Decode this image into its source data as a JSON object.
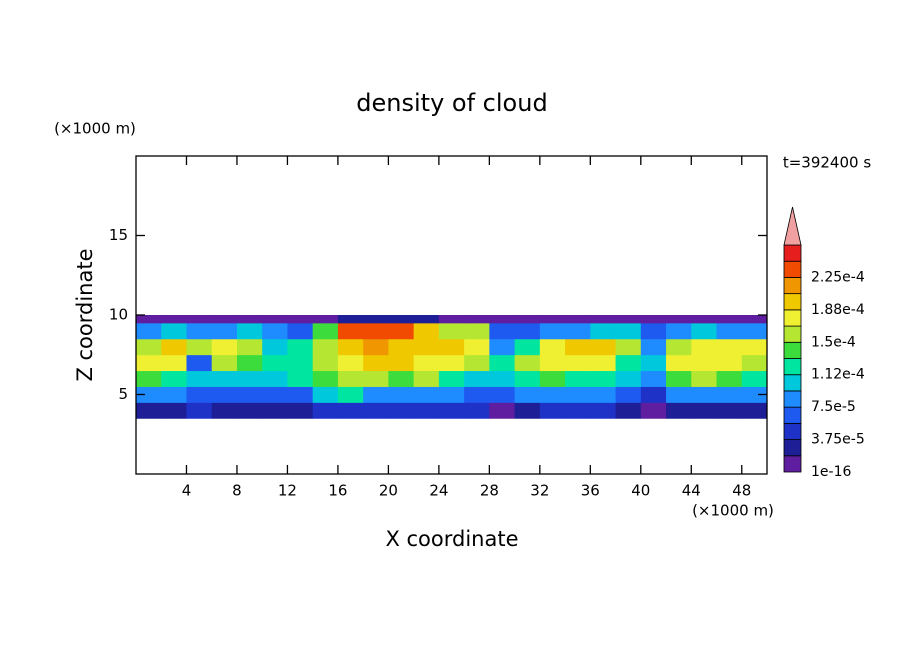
{
  "chart_data": {
    "type": "contour",
    "title": "density of cloud",
    "annotation": "t=392400 s",
    "xlabel": "X coordinate",
    "ylabel": "Z coordinate",
    "xunit": "(×1000 m)",
    "yunit": "(×1000 m)",
    "xlim": [
      0,
      50
    ],
    "ylim": [
      0,
      20
    ],
    "xticks": [
      4,
      8,
      12,
      16,
      20,
      24,
      28,
      32,
      36,
      40,
      44,
      48
    ],
    "yticks": [
      5,
      10,
      15
    ],
    "xbins": [
      0,
      2,
      4,
      6,
      8,
      10,
      12,
      14,
      16,
      18,
      20,
      22,
      24,
      26,
      28,
      30,
      32,
      34,
      36,
      38,
      40,
      42,
      44,
      46,
      48,
      50
    ],
    "zbins": [
      3.5,
      4.5,
      5.5,
      6.5,
      7.5,
      8.5,
      9.5,
      10
    ],
    "values": [
      [
        3e-05,
        3e-05,
        4e-05,
        3e-05,
        3e-05,
        3e-05,
        3e-05,
        4e-05,
        5e-05,
        5e-05,
        4e-05,
        4e-05,
        4e-05,
        4e-05,
        1e-05,
        2e-05,
        4e-05,
        5e-05,
        4e-05,
        2e-05,
        1e-05,
        2e-05,
        3e-05,
        3e-05,
        3e-05
      ],
      [
        8e-05,
        8e-05,
        7e-05,
        7e-05,
        6e-05,
        6e-05,
        7e-05,
        0.00011,
        0.00012,
        9e-05,
        8e-05,
        8e-05,
        9e-05,
        6e-05,
        6e-05,
        8e-05,
        9e-05,
        8e-05,
        9e-05,
        6e-05,
        5e-05,
        9e-05,
        9e-05,
        8e-05,
        8e-05
      ],
      [
        0.00014,
        0.00013,
        0.0001,
        0.00011,
        0.0001,
        0.00011,
        0.00012,
        0.00014,
        0.00016,
        0.00015,
        0.00014,
        0.00015,
        0.00013,
        0.0001,
        0.00011,
        0.00013,
        0.00014,
        0.00013,
        0.00012,
        0.0001,
        9e-05,
        0.00014,
        0.00015,
        0.00014,
        0.00013
      ],
      [
        0.00018,
        0.00017,
        7e-05,
        0.00015,
        0.00014,
        0.00012,
        0.00013,
        0.00016,
        0.00018,
        0.00019,
        0.00019,
        0.00018,
        0.00017,
        0.00015,
        0.00013,
        0.00015,
        0.00017,
        0.00018,
        0.00017,
        0.00013,
        0.00011,
        0.00017,
        0.00018,
        0.00017,
        0.00016
      ],
      [
        0.00016,
        0.0002,
        0.00016,
        0.00017,
        0.00016,
        0.00011,
        0.00012,
        0.00016,
        0.0002,
        0.00021,
        0.0002,
        0.00019,
        0.0002,
        0.00018,
        9e-05,
        0.00013,
        0.00017,
        0.00019,
        0.00019,
        0.00016,
        8e-05,
        0.00015,
        0.00018,
        0.00018,
        0.00017
      ],
      [
        9e-05,
        0.00011,
        9e-05,
        8e-05,
        0.0001,
        8e-05,
        7e-05,
        0.00014,
        0.00023,
        0.00024,
        0.00023,
        0.0002,
        0.00016,
        0.00015,
        6e-05,
        7e-05,
        8e-05,
        9e-05,
        0.0001,
        0.00011,
        6e-05,
        8e-05,
        0.0001,
        9e-05,
        8e-05
      ],
      [
        1e-05,
        1e-05,
        1e-05,
        1e-05,
        1e-05,
        1e-05,
        1e-05,
        1e-05,
        2e-05,
        2e-05,
        2e-05,
        2e-05,
        1e-05,
        1e-05,
        1e-05,
        1e-05,
        1e-05,
        1e-05,
        1e-05,
        1e-05,
        1e-05,
        1e-05,
        1e-05,
        1e-05,
        1e-05
      ]
    ],
    "levels": [
      {
        "value": 1e-16,
        "label": "1e-16"
      },
      1.875e-05,
      {
        "value": 3.75e-05,
        "label": "3.75e-5"
      },
      5.625e-05,
      {
        "value": 7.5e-05,
        "label": "7.5e-5"
      },
      9.375e-05,
      {
        "value": 0.0001125,
        "label": "1.12e-4"
      },
      0.00013125,
      {
        "value": 0.00015,
        "label": "1.5e-4"
      },
      0.00016875,
      {
        "value": 0.0001875,
        "label": "1.88e-4"
      },
      0.00020625,
      {
        "value": 0.000225,
        "label": "2.25e-4"
      },
      0.00024375
    ],
    "colors": [
      "#5f1ea0",
      "#1e1e96",
      "#1e32c8",
      "#1e5af0",
      "#1e8cff",
      "#00c8dc",
      "#00e6a0",
      "#3cdc3c",
      "#b4e632",
      "#f0f032",
      "#f0c800",
      "#f09600",
      "#f04b00"
    ],
    "extend_color": "#f0a0a0"
  }
}
